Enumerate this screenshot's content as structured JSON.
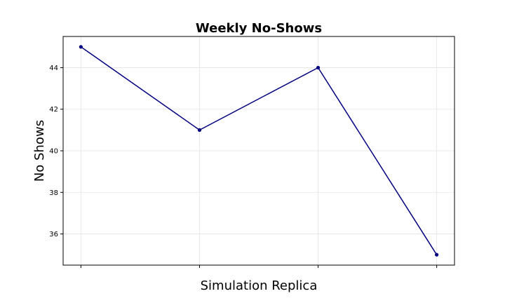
{
  "chart_data": {
    "type": "line",
    "title": "Weekly No-Shows",
    "xlabel": "Simulation Replica",
    "ylabel": "No Shows",
    "x": [
      1,
      2,
      3,
      4
    ],
    "x_tick_labels_visible": false,
    "series": [
      {
        "values": [
          45,
          41,
          44,
          35
        ],
        "color": "#000080",
        "marker": "circle"
      }
    ],
    "xlim": [
      0.85,
      4.15
    ],
    "ylim": [
      34.5,
      45.5
    ],
    "y_ticks": [
      36,
      38,
      40,
      42,
      44
    ],
    "grid": true,
    "legend": "none"
  }
}
